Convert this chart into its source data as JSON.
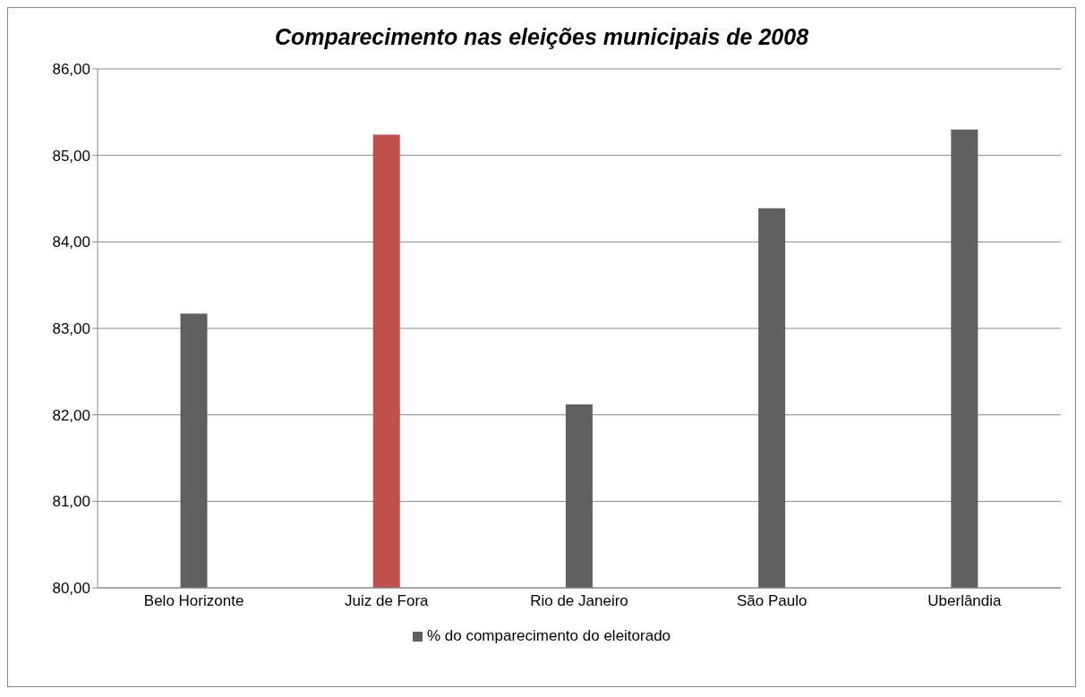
{
  "chart_data": {
    "type": "bar",
    "title": "Comparecimento nas eleições municipais de 2008",
    "categories": [
      "Belo Horizonte",
      "Juiz de Fora",
      "Rio de Janeiro",
      "São Paulo",
      "Uberlândia"
    ],
    "series": [
      {
        "name": "% do comparecimento do eleitorado",
        "color": "#606060",
        "colors": [
          "#606060",
          "#c0504d",
          "#606060",
          "#606060",
          "#606060"
        ],
        "values": [
          83.17,
          85.24,
          82.12,
          84.39,
          85.3
        ]
      }
    ],
    "ylim": [
      80,
      86
    ],
    "yticks": [
      {
        "value": 80,
        "label": "80,00"
      },
      {
        "value": 81,
        "label": "81,00"
      },
      {
        "value": 82,
        "label": "82,00"
      },
      {
        "value": 83,
        "label": "83,00"
      },
      {
        "value": 84,
        "label": "84,00"
      },
      {
        "value": 85,
        "label": "85,00"
      },
      {
        "value": 86,
        "label": "86,00"
      }
    ],
    "grid": "y",
    "legend": "bottom"
  }
}
